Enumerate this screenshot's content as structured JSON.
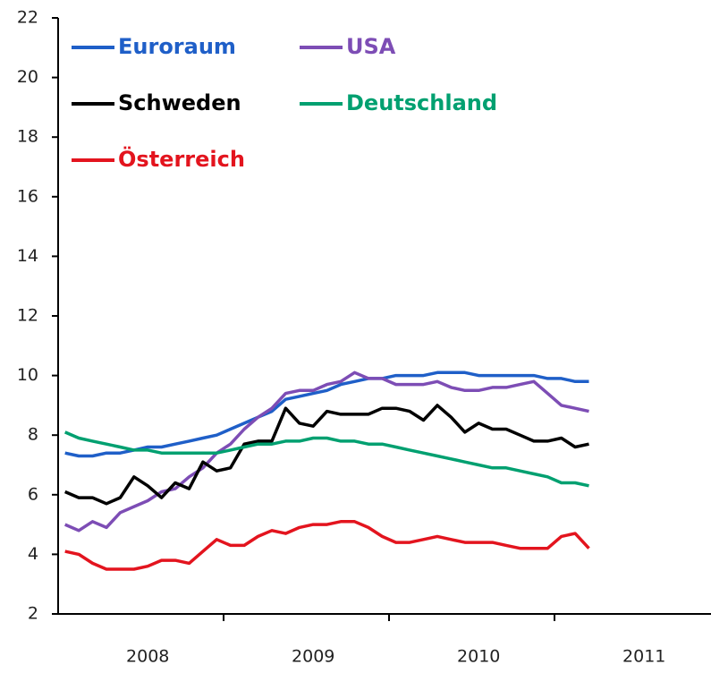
{
  "chart_data": {
    "type": "line",
    "categories": [
      null,
      null,
      null,
      null,
      null,
      null,
      "2008",
      null,
      null,
      null,
      null,
      null,
      null,
      null,
      null,
      null,
      null,
      null,
      "2009",
      null,
      null,
      null,
      null,
      null,
      null,
      null,
      null,
      null,
      null,
      null,
      "2010",
      null,
      null,
      null,
      null,
      null,
      null,
      null,
      null,
      null,
      null,
      null,
      "2011",
      null,
      null,
      null,
      null,
      null
    ],
    "series": [
      {
        "name": "Euroraum",
        "color": "#1f5fc8",
        "values": [
          7.4,
          7.3,
          7.3,
          7.4,
          7.4,
          7.5,
          7.6,
          7.6,
          7.7,
          7.8,
          7.9,
          8.0,
          8.2,
          8.4,
          8.6,
          8.8,
          9.2,
          9.3,
          9.4,
          9.5,
          9.7,
          9.8,
          9.9,
          9.9,
          10.0,
          10.0,
          10.0,
          10.1,
          10.1,
          10.1,
          10.0,
          10.0,
          10.0,
          10.0,
          10.0,
          9.9,
          9.9,
          9.8,
          9.8,
          null,
          null,
          null,
          null,
          null,
          null,
          null,
          null,
          null
        ]
      },
      {
        "name": "USA",
        "color": "#7d4db5",
        "values": [
          5.0,
          4.8,
          5.1,
          4.9,
          5.4,
          5.6,
          5.8,
          6.1,
          6.2,
          6.6,
          6.9,
          7.4,
          7.7,
          8.2,
          8.6,
          8.9,
          9.4,
          9.5,
          9.5,
          9.7,
          9.8,
          10.1,
          9.9,
          9.9,
          9.7,
          9.7,
          9.7,
          9.8,
          9.6,
          9.5,
          9.5,
          9.6,
          9.6,
          9.7,
          9.8,
          9.4,
          9.0,
          8.9,
          8.8,
          null,
          null,
          null,
          null,
          null,
          null,
          null,
          null,
          null
        ]
      },
      {
        "name": "Schweden",
        "color": "#000000",
        "values": [
          6.1,
          5.9,
          5.9,
          5.7,
          5.9,
          6.6,
          6.3,
          5.9,
          6.4,
          6.2,
          7.1,
          6.8,
          6.9,
          7.7,
          7.8,
          7.8,
          8.9,
          8.4,
          8.3,
          8.8,
          8.7,
          8.7,
          8.7,
          8.9,
          8.9,
          8.8,
          8.5,
          9.0,
          8.6,
          8.1,
          8.4,
          8.2,
          8.2,
          8.0,
          7.8,
          7.8,
          7.9,
          7.6,
          7.7,
          null,
          null,
          null,
          null,
          null,
          null,
          null,
          null,
          null
        ]
      },
      {
        "name": "Deutschland",
        "color": "#00a070",
        "values": [
          8.1,
          7.9,
          7.8,
          7.7,
          7.6,
          7.5,
          7.5,
          7.4,
          7.4,
          7.4,
          7.4,
          7.4,
          7.5,
          7.6,
          7.7,
          7.7,
          7.8,
          7.8,
          7.9,
          7.9,
          7.8,
          7.8,
          7.7,
          7.7,
          7.6,
          7.5,
          7.4,
          7.3,
          7.2,
          7.1,
          7.0,
          6.9,
          6.9,
          6.8,
          6.7,
          6.6,
          6.4,
          6.4,
          6.3,
          null,
          null,
          null,
          null,
          null,
          null,
          null,
          null,
          null
        ]
      },
      {
        "name": "Österreich",
        "color": "#e3141e",
        "values": [
          4.1,
          4.0,
          3.7,
          3.5,
          3.5,
          3.5,
          3.6,
          3.8,
          3.8,
          3.7,
          4.1,
          4.5,
          4.3,
          4.3,
          4.6,
          4.8,
          4.7,
          4.9,
          5.0,
          5.0,
          5.1,
          5.1,
          4.9,
          4.6,
          4.4,
          4.4,
          4.5,
          4.6,
          4.5,
          4.4,
          4.4,
          4.4,
          4.3,
          4.2,
          4.2,
          4.2,
          4.6,
          4.7,
          4.2,
          null,
          null,
          null,
          null,
          null,
          null,
          null,
          null,
          null
        ]
      }
    ],
    "ylim": [
      2,
      22
    ],
    "yticks": [
      2,
      4,
      6,
      8,
      10,
      12,
      14,
      16,
      18,
      20,
      22
    ],
    "grid": false
  }
}
